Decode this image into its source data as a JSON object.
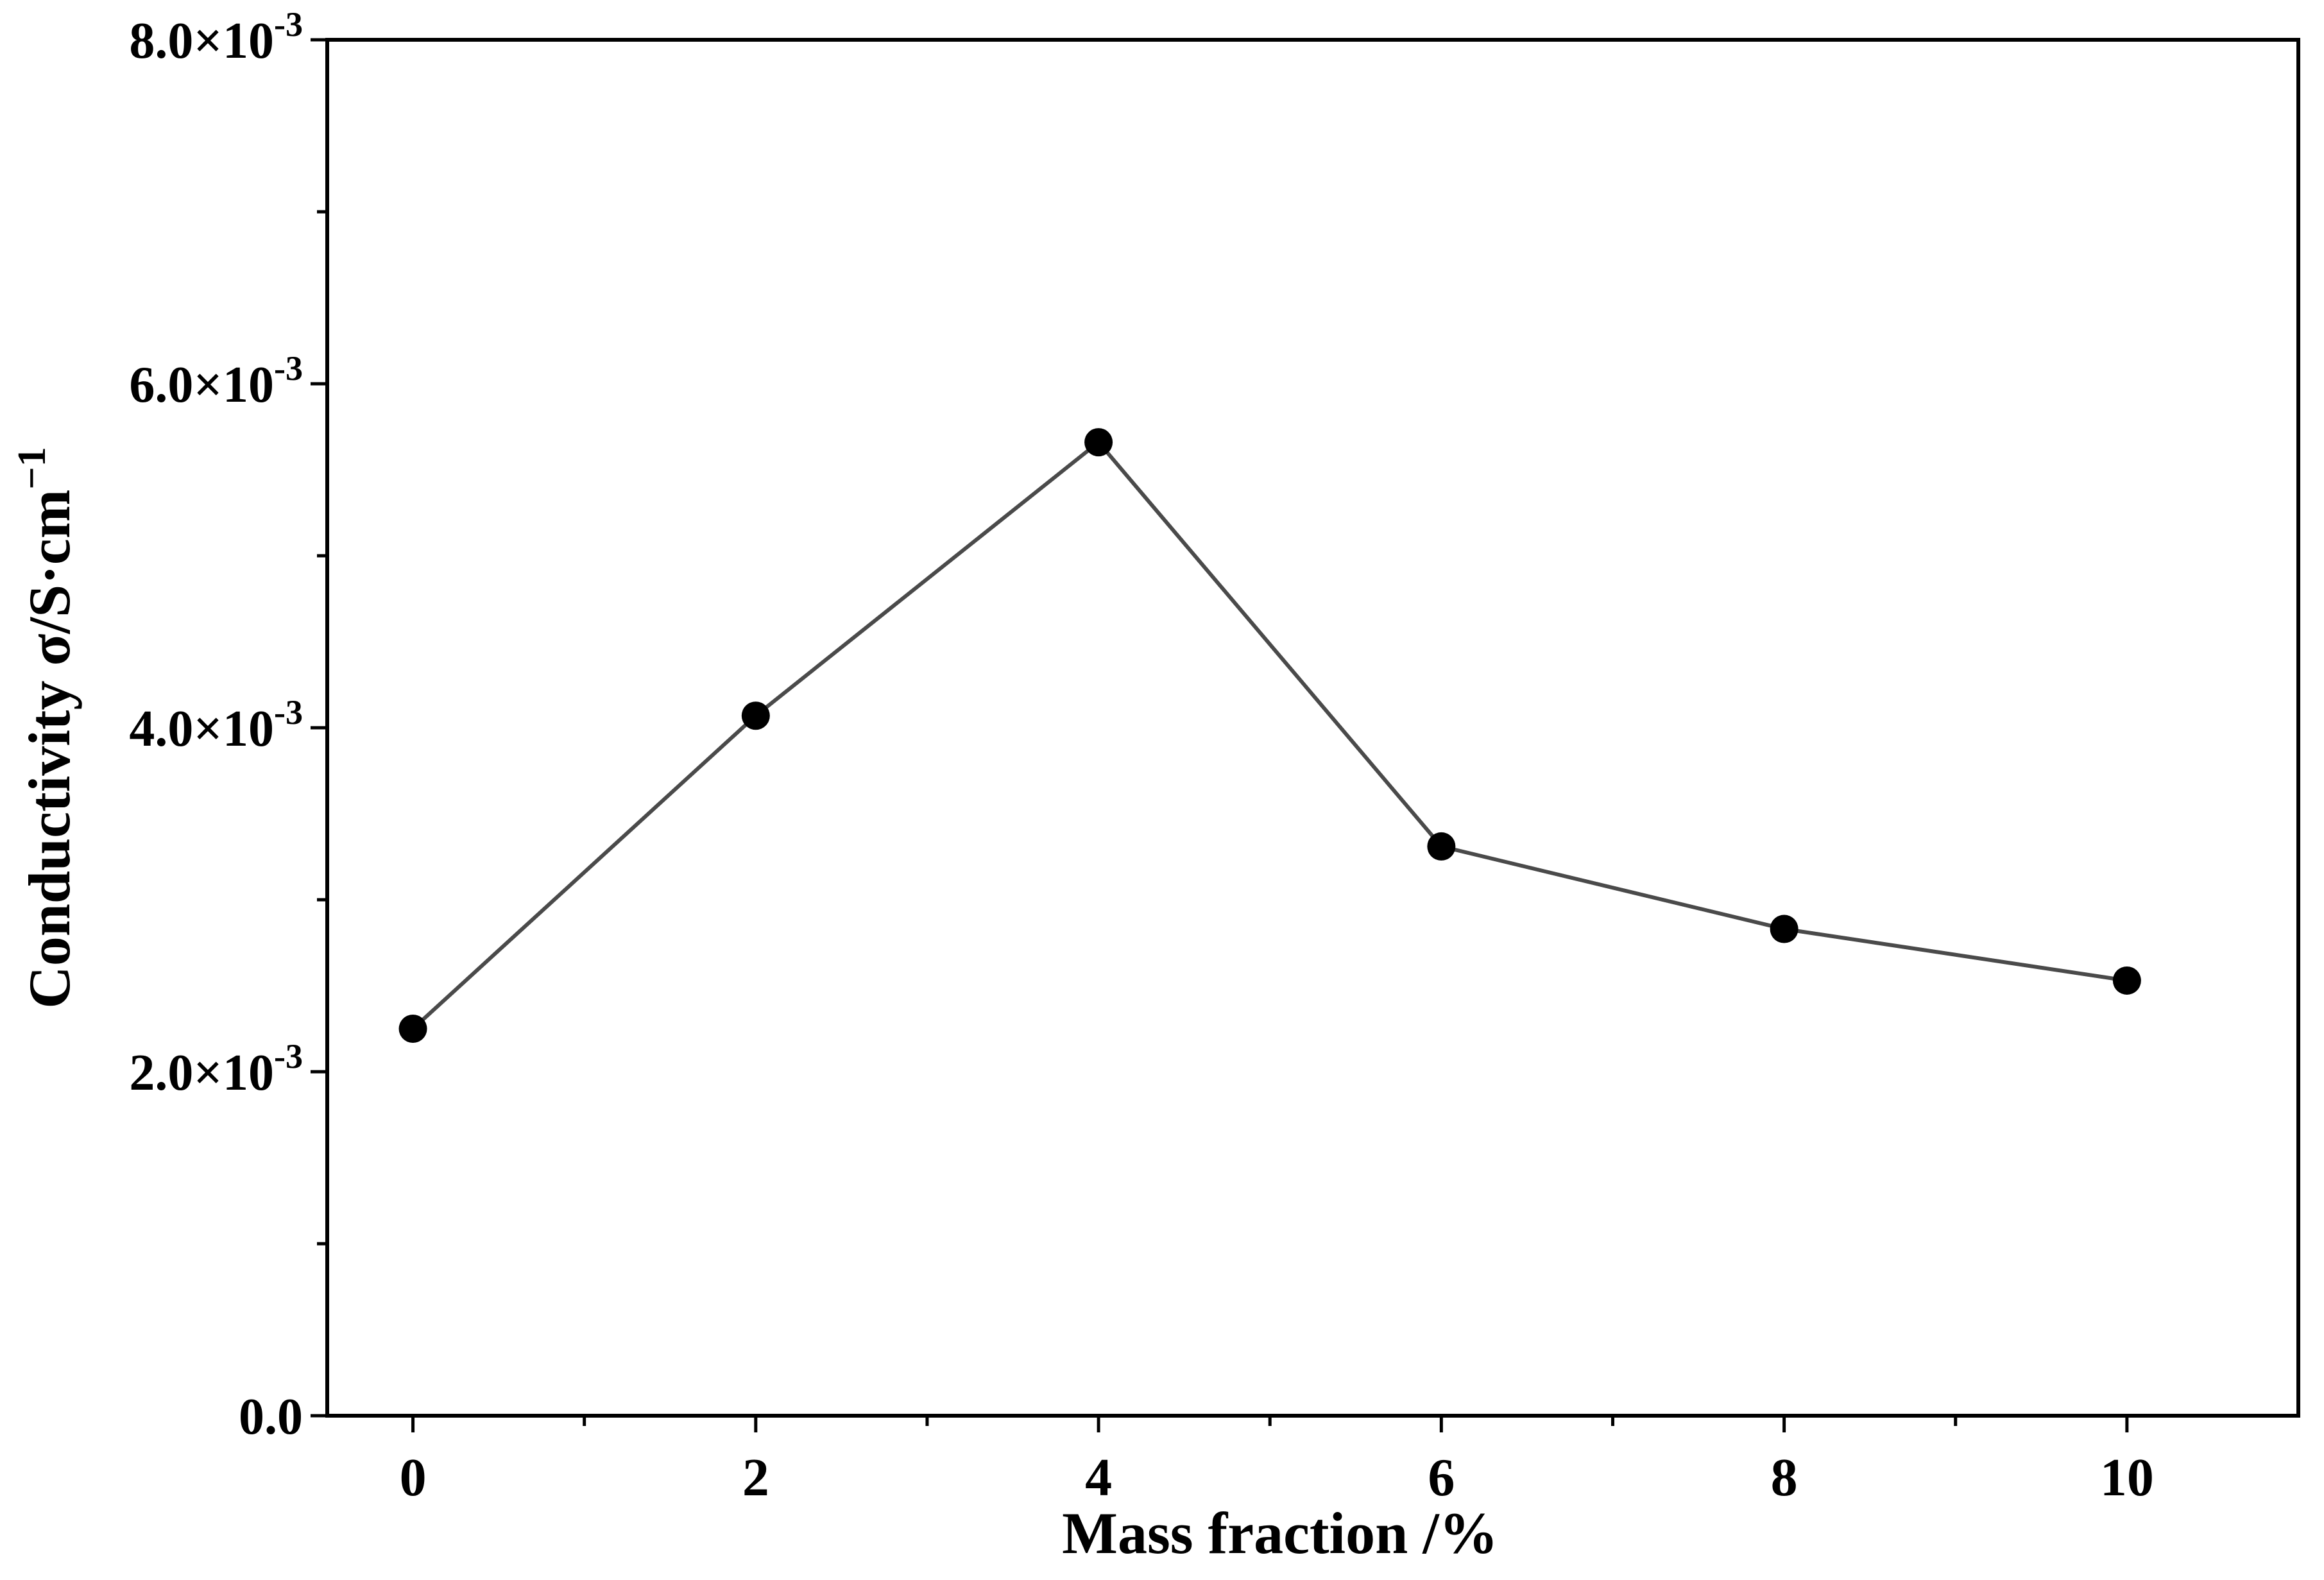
{
  "chart_data": {
    "type": "line",
    "title": "",
    "xlabel": "Mass fraction  /%",
    "ylabel": {
      "main": "Conductivity σ/S·cm",
      "superscript": "−1"
    },
    "x": [
      0,
      2,
      4,
      6,
      8,
      10
    ],
    "series": [
      {
        "name": "Conductivity",
        "values": [
          0.00225,
          0.00407,
          0.00566,
          0.00331,
          0.00283,
          0.00253
        ],
        "line_color": "#4a4a4a",
        "marker_color": "#000000"
      }
    ],
    "xlim": [
      -0.5,
      11
    ],
    "ylim": [
      0,
      0.008
    ],
    "x_ticks": [
      {
        "value": 0,
        "label": "0"
      },
      {
        "value": 2,
        "label": "2"
      },
      {
        "value": 4,
        "label": "4"
      },
      {
        "value": 6,
        "label": "6"
      },
      {
        "value": 8,
        "label": "8"
      },
      {
        "value": 10,
        "label": "10"
      }
    ],
    "x_minor_ticks": [
      1,
      3,
      5,
      7,
      9
    ],
    "y_ticks": [
      {
        "value": 0,
        "mantissa": "0.0",
        "exponent": ""
      },
      {
        "value": 0.002,
        "mantissa": "2.0×10",
        "exponent": "-3"
      },
      {
        "value": 0.004,
        "mantissa": "4.0×10",
        "exponent": "-3"
      },
      {
        "value": 0.006,
        "mantissa": "6.0×10",
        "exponent": "-3"
      },
      {
        "value": 0.008,
        "mantissa": "8.0×10",
        "exponent": "-3"
      }
    ],
    "y_minor_ticks": [
      0.001,
      0.003,
      0.005,
      0.007
    ],
    "grid": false,
    "legend": "none"
  }
}
